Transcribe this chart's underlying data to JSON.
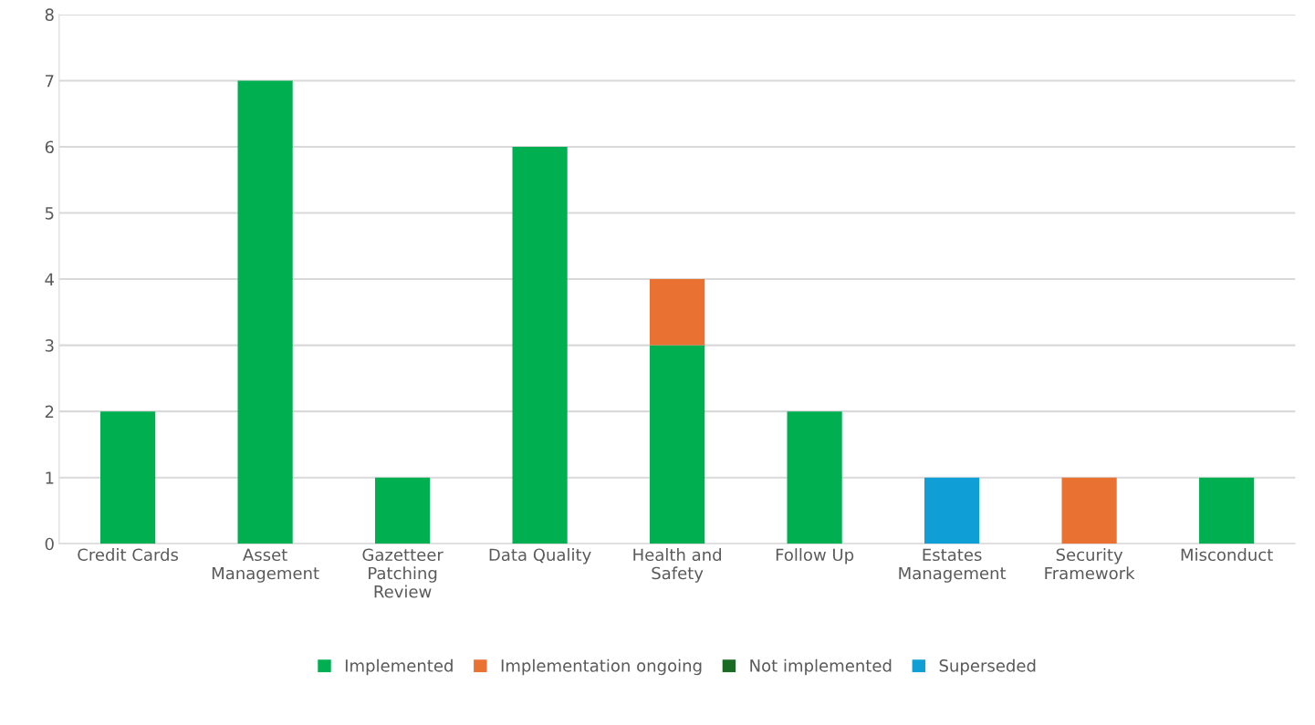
{
  "chart_data": {
    "type": "bar",
    "stacked": true,
    "categories": [
      "Credit Cards",
      "Asset\nManagement",
      "Gazetteer\nPatching\nReview",
      "Data Quality",
      "Health and\nSafety",
      "Follow Up",
      "Estates\nManagement",
      "Security\nFramework",
      "Misconduct"
    ],
    "series": [
      {
        "name": "Implemented",
        "color": "#00b050",
        "values": [
          2,
          7,
          1,
          6,
          3,
          2,
          0,
          0,
          1
        ]
      },
      {
        "name": "Implementation ongoing",
        "color": "#e97132",
        "values": [
          0,
          0,
          0,
          0,
          1,
          0,
          0,
          1,
          0
        ]
      },
      {
        "name": "Not implemented",
        "color": "#196b24",
        "values": [
          0,
          0,
          0,
          0,
          0,
          0,
          0,
          0,
          0
        ]
      },
      {
        "name": "Superseded",
        "color": "#0f9ed5",
        "values": [
          0,
          0,
          0,
          0,
          0,
          0,
          1,
          0,
          0
        ]
      }
    ],
    "ylim": [
      0,
      8
    ],
    "yticks": [
      0,
      1,
      2,
      3,
      4,
      5,
      6,
      7,
      8
    ],
    "grid": "y",
    "legend": "bottom"
  }
}
